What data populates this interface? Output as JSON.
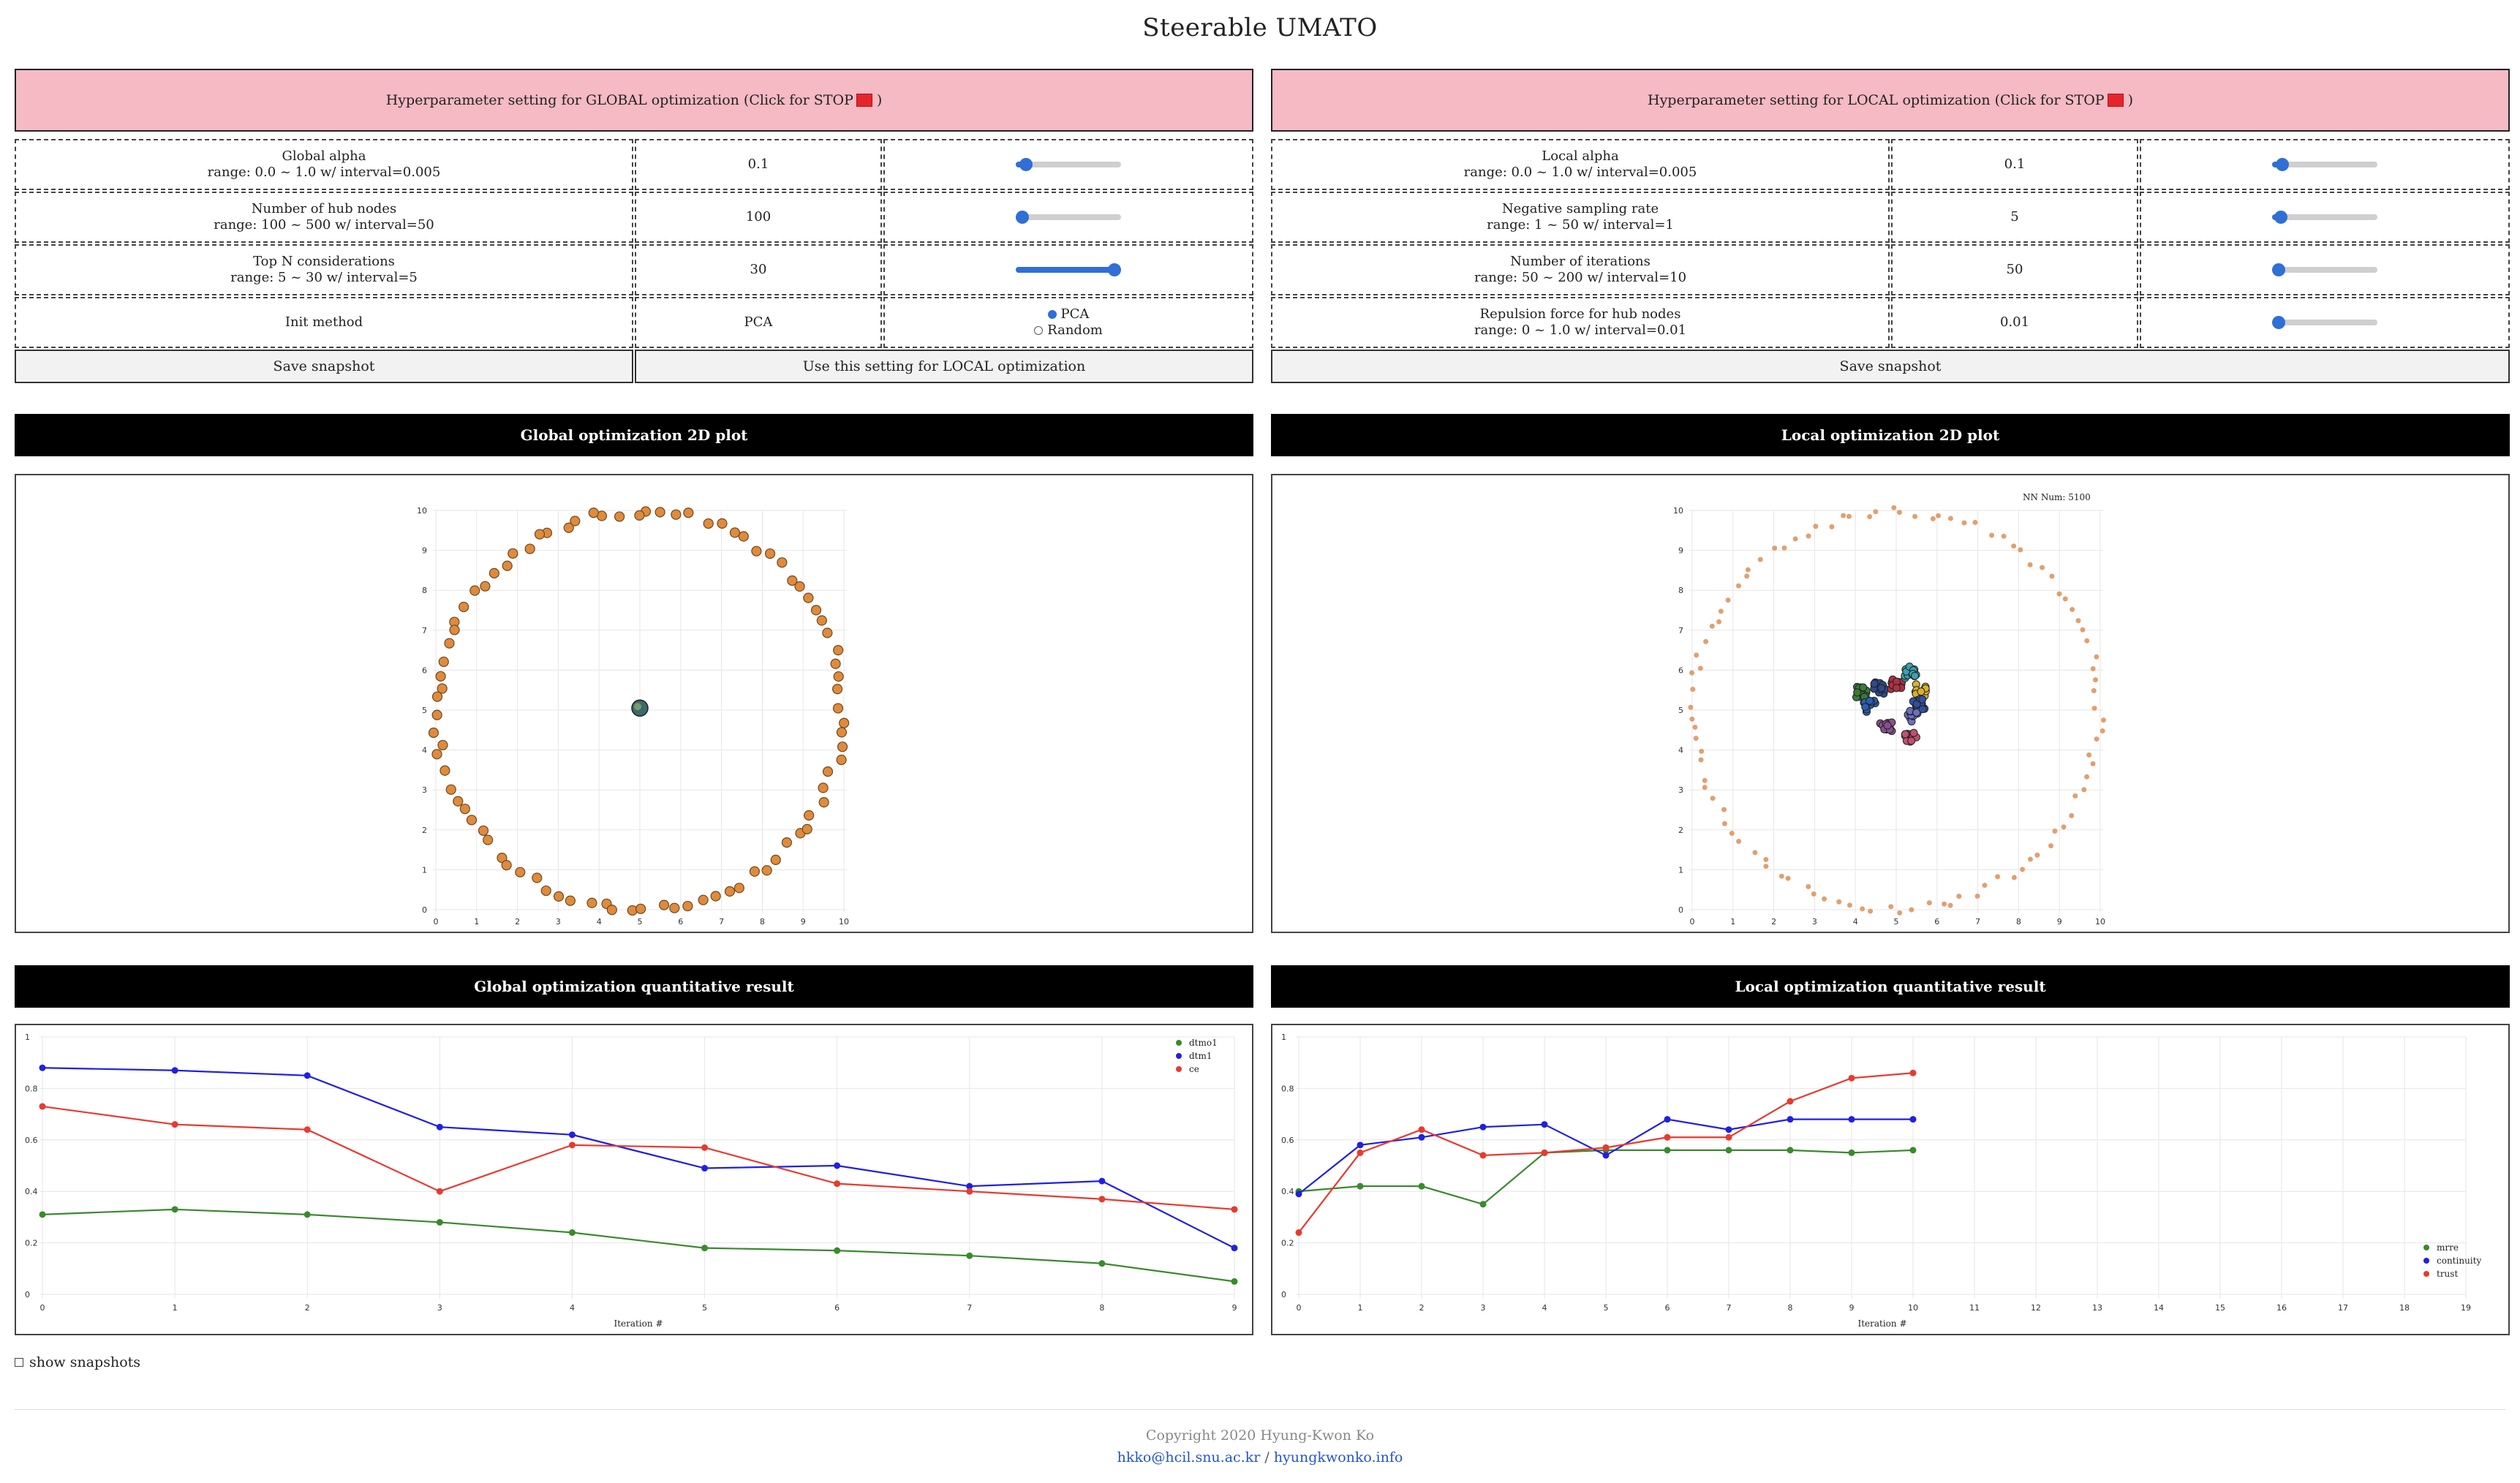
{
  "page_title": "Steerable UMATO",
  "global_panel": {
    "header": "Hyperparameter setting for GLOBAL optimization (Click for STOP",
    "header_tail": ")",
    "rows": [
      {
        "name": "Global alpha",
        "range": "range: 0.0 ~ 1.0 w/ interval=0.005",
        "value": "0.1",
        "control": "slider",
        "level": 0.1
      },
      {
        "name": "Number of hub nodes",
        "range": "range: 100 ~ 500 w/ interval=50",
        "value": "100",
        "control": "slider",
        "level": 0.0
      },
      {
        "name": "Top N considerations",
        "range": "range: 5 ~ 30 w/ interval=5",
        "value": "30",
        "control": "slider",
        "level": 1.0
      },
      {
        "name": "Init method",
        "range": "",
        "value": "PCA",
        "control": "radio",
        "options": [
          "PCA",
          "Random"
        ],
        "selected": "PCA"
      }
    ],
    "save_label": "Save snapshot",
    "use_label": "Use this setting for LOCAL optimization",
    "plot_title": "Global optimization 2D plot",
    "quant_title": "Global optimization quantitative result"
  },
  "local_panel": {
    "header": "Hyperparameter setting for LOCAL optimization (Click for STOP",
    "header_tail": ")",
    "rows": [
      {
        "name": "Local alpha",
        "range": "range: 0.0 ~ 1.0 w/ interval=0.005",
        "value": "0.1",
        "control": "slider",
        "level": 0.1
      },
      {
        "name": "Negative sampling rate",
        "range": "range: 1 ~ 50 w/ interval=1",
        "value": "5",
        "control": "slider",
        "level": 0.08
      },
      {
        "name": "Number of iterations",
        "range": "range: 50 ~ 200 w/ interval=10",
        "value": "50",
        "control": "slider",
        "level": 0.0
      },
      {
        "name": "Repulsion force for hub nodes",
        "range": "range: 0 ~ 1.0 w/ interval=0.01",
        "value": "0.01",
        "control": "slider",
        "level": 0.01
      }
    ],
    "save_label": "Save snapshot",
    "plot_title": "Local optimization 2D plot",
    "quant_title": "Local optimization quantitative result",
    "nn_label": "NN Num: 5100"
  },
  "show_snapshots_label": "show snapshots",
  "footer": {
    "copyright": "Copyright 2020 Hyung-Kwon Ko",
    "email": "hkko@hcil.snu.ac.kr",
    "sep": "/",
    "site": "hyungkwonko.info"
  },
  "colors": {
    "orange": "#e08a3c",
    "green": "#3a8a2e",
    "blue": "#2020e0",
    "red": "#e83a30"
  },
  "chart_data": [
    {
      "type": "scatter",
      "x_ticks": [
        "0",
        "1",
        "2",
        "3",
        "4",
        "5",
        "6",
        "7",
        "8",
        "9",
        "10"
      ],
      "y_ticks": [
        "0",
        "1",
        "2",
        "3",
        "4",
        "5",
        "6",
        "7",
        "8",
        "9",
        "10"
      ],
      "xlim": [
        0,
        10
      ],
      "ylim": [
        0,
        10
      ],
      "ring": {
        "center": [
          5,
          5
        ],
        "radius": 5,
        "count": 88
      },
      "cluster": [
        {
          "x": 5.0,
          "y": 5.05
        }
      ],
      "point_color": "#e08a3c"
    },
    {
      "type": "scatter",
      "x_ticks": [
        "0",
        "1",
        "2",
        "3",
        "4",
        "5",
        "6",
        "7",
        "8",
        "9",
        "10"
      ],
      "y_ticks": [
        "0",
        "1",
        "2",
        "3",
        "4",
        "5",
        "6",
        "7",
        "8",
        "9",
        "10"
      ],
      "xlim": [
        0,
        10
      ],
      "ylim": [
        0,
        10
      ],
      "ring": {
        "center": [
          5,
          5
        ],
        "radius": 5,
        "count": 100
      },
      "clusters": [
        {
          "x": 4.15,
          "y": 5.45,
          "color": "#3a7a3a"
        },
        {
          "x": 4.6,
          "y": 5.55,
          "color": "#2d4a8a"
        },
        {
          "x": 5.0,
          "y": 5.65,
          "color": "#b03040"
        },
        {
          "x": 5.35,
          "y": 5.95,
          "color": "#3aa0b0"
        },
        {
          "x": 5.6,
          "y": 5.5,
          "color": "#d9b030"
        },
        {
          "x": 4.35,
          "y": 5.1,
          "color": "#2a5fb0"
        },
        {
          "x": 5.4,
          "y": 4.85,
          "color": "#6a70c0"
        },
        {
          "x": 5.55,
          "y": 5.15,
          "color": "#3050a0"
        },
        {
          "x": 4.75,
          "y": 4.55,
          "color": "#8a5090"
        },
        {
          "x": 5.35,
          "y": 4.35,
          "color": "#c05070"
        }
      ]
    },
    {
      "type": "line",
      "x": [
        0,
        1,
        2,
        3,
        4,
        5,
        6,
        7,
        8,
        9
      ],
      "xlabel": "Iteration #",
      "ylim": [
        0,
        1
      ],
      "y_ticks": [
        "0",
        "0.2",
        "0.4",
        "0.6",
        "0.8",
        "1"
      ],
      "series": [
        {
          "name": "dtmo1",
          "color": "#3a8a2e",
          "values": [
            0.31,
            0.33,
            0.31,
            0.28,
            0.24,
            0.18,
            0.17,
            0.15,
            0.12,
            0.05
          ]
        },
        {
          "name": "dtm1",
          "color": "#2020e0",
          "values": [
            0.88,
            0.87,
            0.85,
            0.65,
            0.62,
            0.49,
            0.5,
            0.42,
            0.44,
            0.18
          ]
        },
        {
          "name": "ce",
          "color": "#e83a30",
          "values": [
            0.73,
            0.66,
            0.64,
            0.4,
            0.58,
            0.57,
            0.43,
            0.4,
            0.37,
            0.33
          ]
        }
      ],
      "legend": "top-right"
    },
    {
      "type": "line",
      "x": [
        0,
        1,
        2,
        3,
        4,
        5,
        6,
        7,
        8,
        9,
        10
      ],
      "x_ticks": [
        "0",
        "1",
        "2",
        "3",
        "4",
        "5",
        "6",
        "7",
        "8",
        "9",
        "10",
        "11",
        "12",
        "13",
        "14",
        "15",
        "16",
        "17",
        "18",
        "19"
      ],
      "xlabel": "Iteration #",
      "ylim": [
        0,
        1
      ],
      "y_ticks": [
        "0",
        "0.2",
        "0.4",
        "0.6",
        "0.8",
        "1"
      ],
      "series": [
        {
          "name": "mrre",
          "color": "#3a8a2e",
          "values": [
            0.4,
            0.42,
            0.42,
            0.35,
            0.55,
            0.56,
            0.56,
            0.56,
            0.56,
            0.55,
            0.56
          ]
        },
        {
          "name": "continuity",
          "color": "#2020e0",
          "values": [
            0.39,
            0.58,
            0.61,
            0.65,
            0.66,
            0.54,
            0.68,
            0.64,
            0.68,
            0.68,
            0.68
          ]
        },
        {
          "name": "trust",
          "color": "#e83a30",
          "values": [
            0.24,
            0.55,
            0.64,
            0.54,
            0.55,
            0.57,
            0.61,
            0.61,
            0.75,
            0.84,
            0.86
          ]
        }
      ],
      "legend": "bottom-right"
    }
  ]
}
